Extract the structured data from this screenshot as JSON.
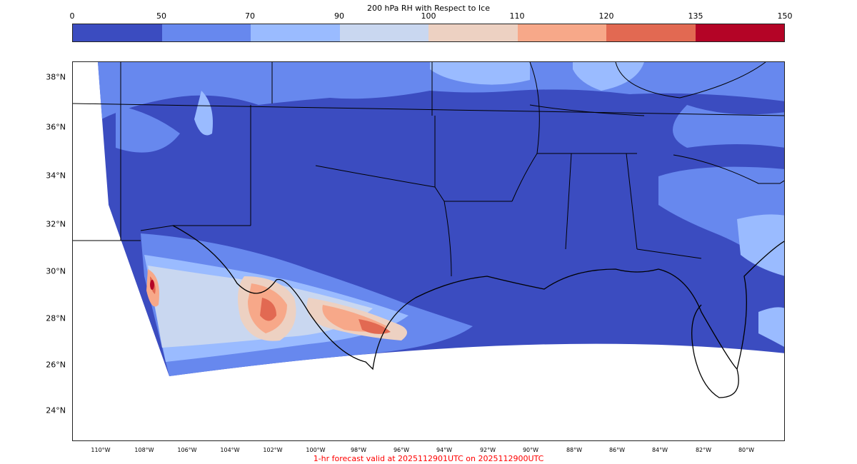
{
  "colorbar": {
    "title": "200 hPa RH with Respect to Ice",
    "ticks": [
      "0",
      "50",
      "70",
      "90",
      "100",
      "110",
      "120",
      "135",
      "150"
    ],
    "colors": [
      "#3b4cc0",
      "#6788ee",
      "#9abbff",
      "#c9d7f0",
      "#edd1c2",
      "#f7a889",
      "#e26952",
      "#b40426"
    ]
  },
  "map": {
    "lat_labels": [
      "38°N",
      "36°N",
      "34°N",
      "32°N",
      "30°N",
      "28°N",
      "26°N",
      "24°N"
    ],
    "lon_labels": [
      "110°W",
      "108°W",
      "106°W",
      "104°W",
      "102°W",
      "100°W",
      "98°W",
      "96°W",
      "94°W",
      "92°W",
      "90°W",
      "88°W",
      "86°W",
      "84°W",
      "82°W",
      "80°W"
    ]
  },
  "footer": "1-hr forecast valid at 2025112901UTC on 2025112900UTC"
}
